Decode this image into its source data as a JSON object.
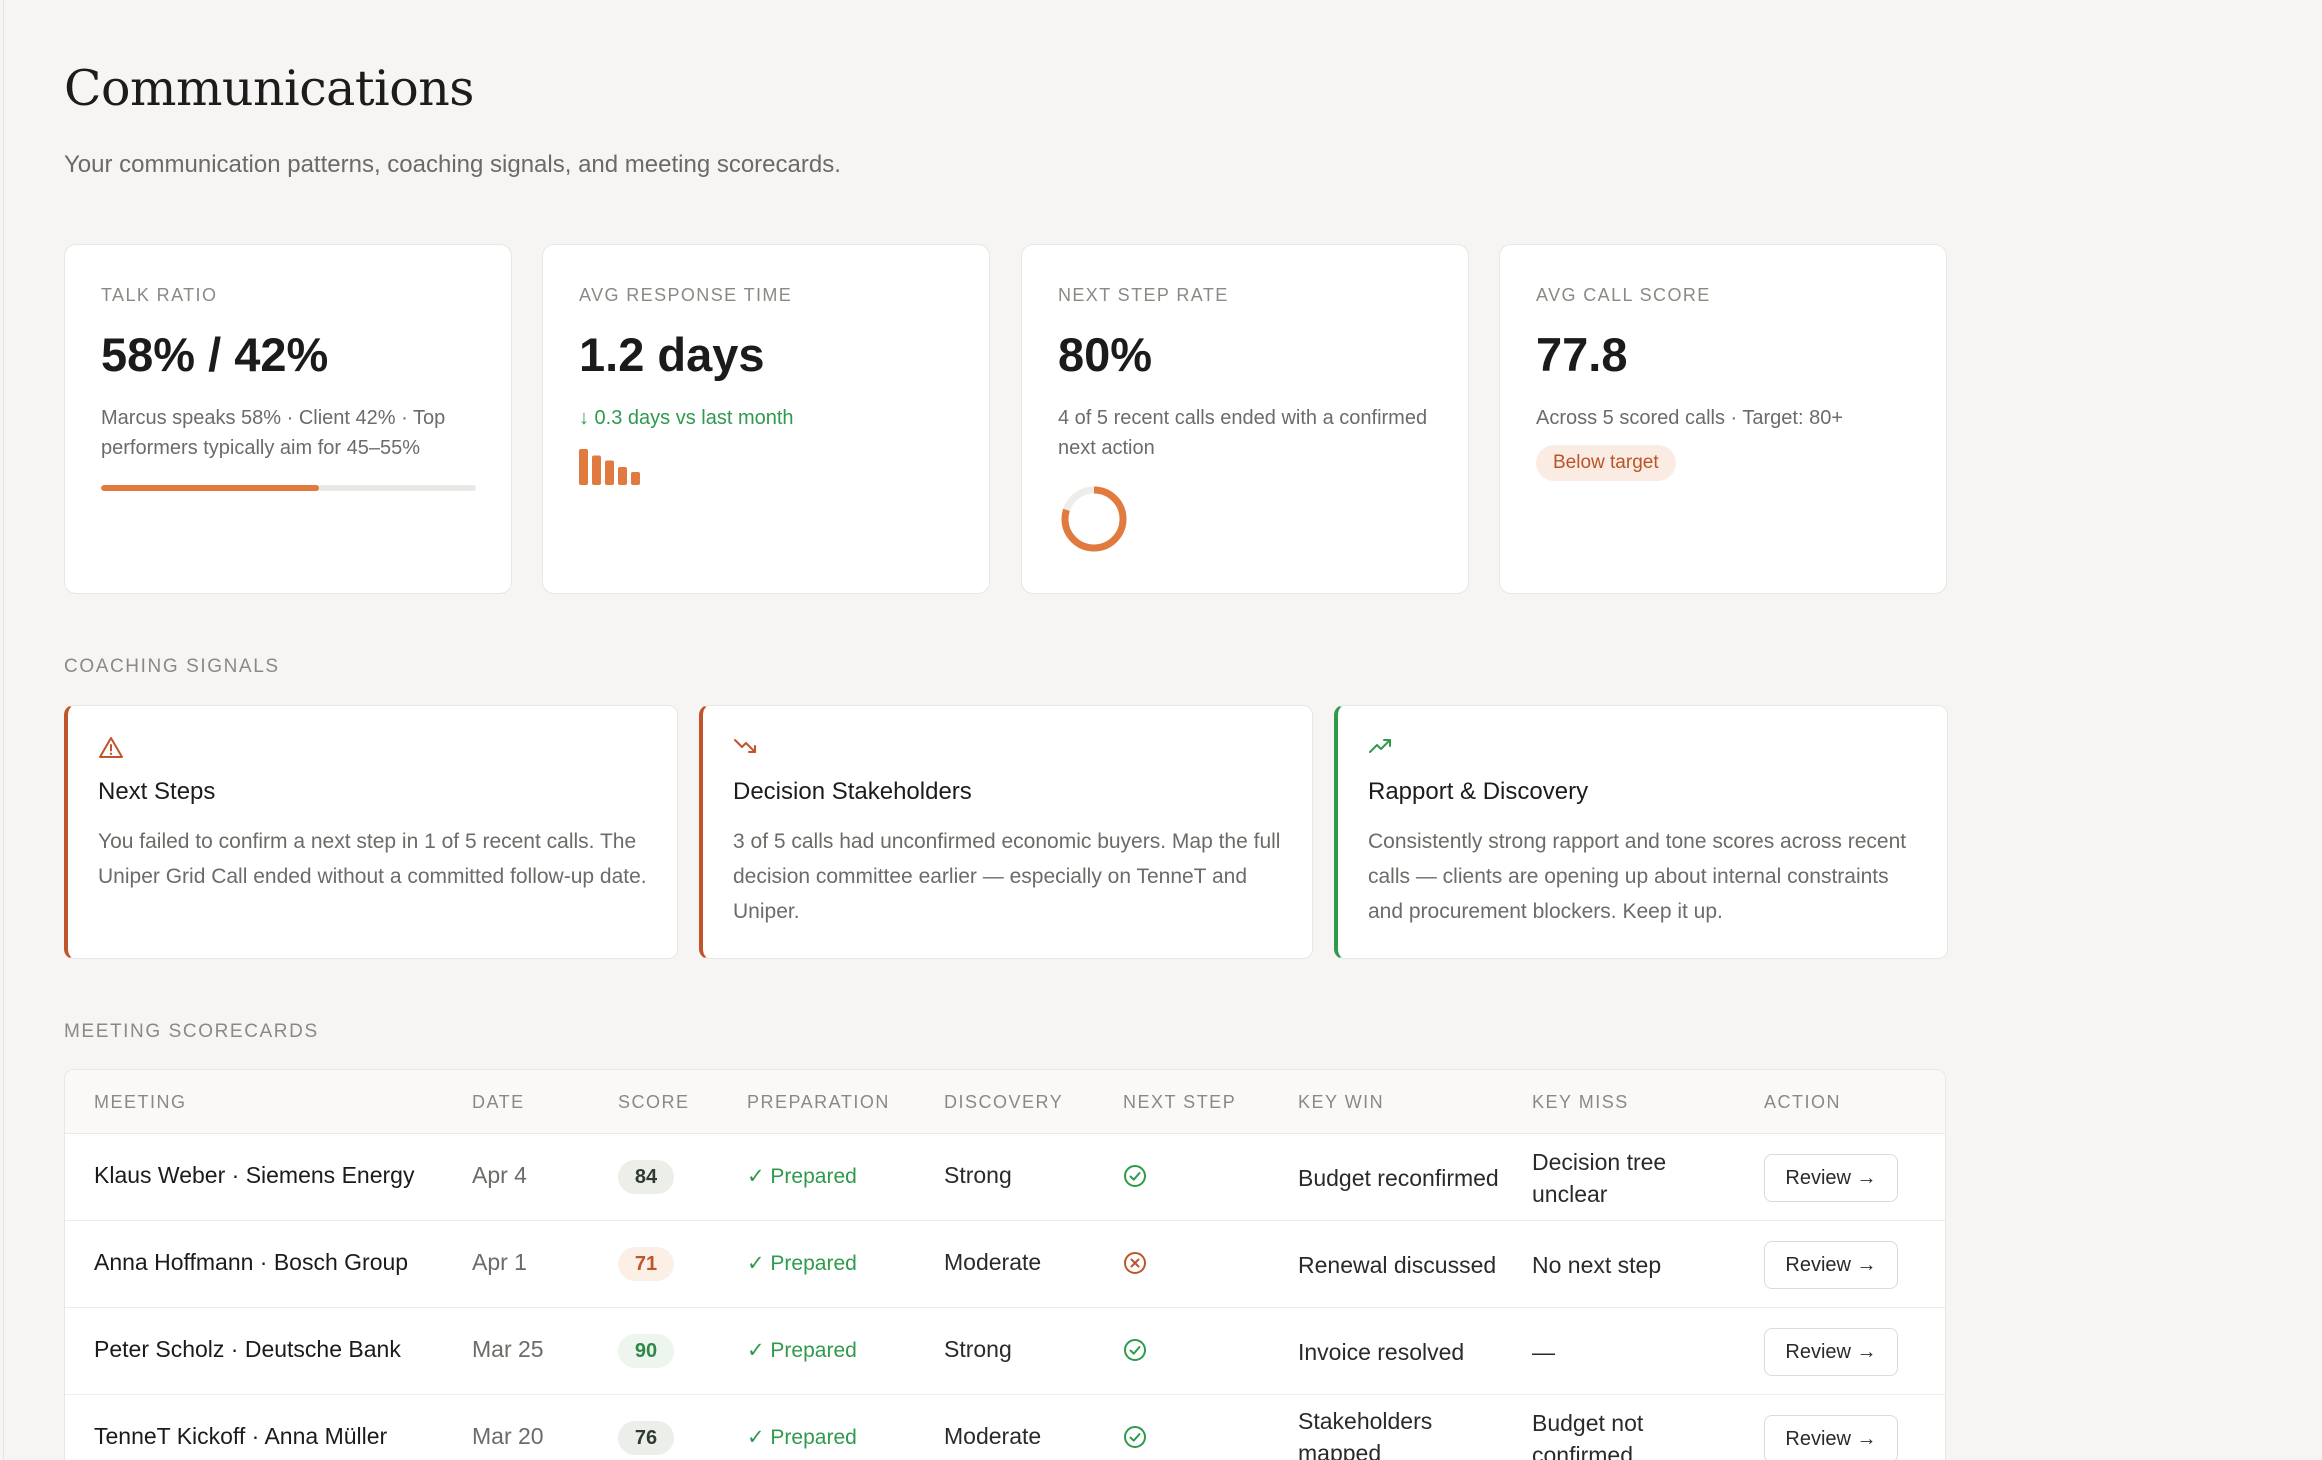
{
  "header": {
    "title": "Communications",
    "subtitle": "Your communication patterns, coaching signals, and meeting scorecards."
  },
  "kpis": {
    "talk_ratio": {
      "label": "TALK RATIO",
      "value": "58% / 42%",
      "description": "Marcus speaks 58% · Client 42% · Top performers typically aim for 45–55%",
      "progress_fraction": 0.58
    },
    "response_time": {
      "label": "AVG RESPONSE TIME",
      "value": "1.2 days",
      "delta": "↓ 0.3 days vs last month",
      "spark_levels": [
        1.0,
        0.82,
        0.68,
        0.5,
        0.36
      ]
    },
    "next_step_rate": {
      "label": "NEXT STEP RATE",
      "value": "80%",
      "description": "4 of 5 recent calls ended with a confirmed next action",
      "donut_fraction": 0.8
    },
    "call_score": {
      "label": "AVG CALL SCORE",
      "value": "77.8",
      "description": "Across 5 scored calls · Target: 80+",
      "badge": "Below target"
    }
  },
  "coaching": {
    "section_title": "COACHING SIGNALS",
    "cards": [
      {
        "icon": "warning-triangle-icon",
        "title": "Next Steps",
        "body": "You failed to confirm a next step in 1 of 5 recent calls. The Uniper Grid Call ended without a committed follow-up date.",
        "accent": "#c0542a"
      },
      {
        "icon": "trending-down-icon",
        "title": "Decision Stakeholders",
        "body": "3 of 5 calls had unconfirmed economic buyers. Map the full decision committee earlier — especially on TenneT and Uniper.",
        "accent": "#c0542a"
      },
      {
        "icon": "trending-up-icon",
        "title": "Rapport & Discovery",
        "body": "Consistently strong rapport and tone scores across recent calls — clients are opening up about internal constraints and procurement blockers. Keep it up.",
        "accent": "#2f9a4c"
      }
    ]
  },
  "scorecards": {
    "section_title": "MEETING SCORECARDS",
    "columns": [
      "MEETING",
      "DATE",
      "SCORE",
      "PREPARATION",
      "DISCOVERY",
      "NEXT STEP",
      "KEY WIN",
      "KEY MISS",
      "ACTION"
    ],
    "rows": [
      {
        "meeting": "Klaus Weber · Siemens Energy",
        "date": "Apr 4",
        "score": "84",
        "preparation": "✓ Prepared",
        "discovery": "Strong",
        "next_step": "check",
        "key_win": "Budget reconfirmed",
        "key_miss": "Decision tree unclear",
        "action": "Review →"
      },
      {
        "meeting": "Anna Hoffmann · Bosch Group",
        "date": "Apr 1",
        "score": "71",
        "preparation": "✓ Prepared",
        "discovery": "Moderate",
        "next_step": "cross",
        "key_win": "Renewal discussed",
        "key_miss": "No next step",
        "action": "Review →"
      },
      {
        "meeting": "Peter Scholz · Deutsche Bank",
        "date": "Mar 25",
        "score": "90",
        "preparation": "✓ Prepared",
        "discovery": "Strong",
        "next_step": "check",
        "key_win": "Invoice resolved",
        "key_miss": "—",
        "action": "Review →"
      },
      {
        "meeting": "TenneT Kickoff · Anna Müller",
        "date": "Mar 20",
        "score": "76",
        "preparation": "✓ Prepared",
        "discovery": "Moderate",
        "next_step": "check",
        "key_win": "Stakeholders mapped",
        "key_miss": "Budget not confirmed",
        "action": "Review →"
      }
    ]
  },
  "colors": {
    "accent_orange": "#e07a3f",
    "success_green": "#2f9a4c",
    "danger_red": "#c0542a",
    "background": "#f6f5f3"
  }
}
